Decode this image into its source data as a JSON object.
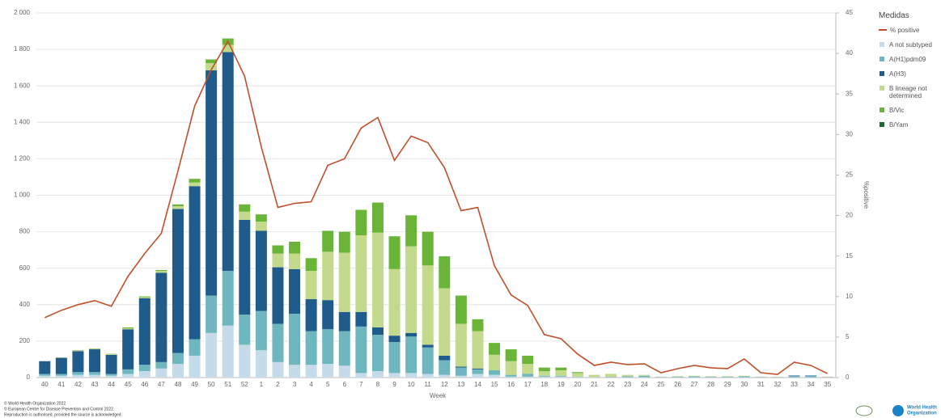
{
  "chart_data": {
    "type": "bar",
    "stacked": true,
    "x_label": "Week",
    "y2_label": "%positive",
    "legend_title": "Medidas",
    "legend_position": "right",
    "grid": true,
    "categories": [
      "40",
      "41",
      "42",
      "43",
      "44",
      "45",
      "46",
      "47",
      "48",
      "49",
      "50",
      "51",
      "52",
      "1",
      "2",
      "3",
      "4",
      "5",
      "6",
      "7",
      "8",
      "9",
      "10",
      "11",
      "12",
      "13",
      "14",
      "15",
      "16",
      "17",
      "18",
      "19",
      "20",
      "21",
      "22",
      "23",
      "24",
      "25",
      "26",
      "27",
      "28",
      "29",
      "30",
      "31",
      "32",
      "33",
      "34",
      "35"
    ],
    "series": [
      {
        "name": "% positive",
        "color": "#c0502c",
        "axis": "y2",
        "values": [
          7.4,
          8.3,
          9.0,
          9.5,
          8.8,
          12.5,
          15.3,
          17.8,
          25.5,
          33.5,
          38,
          41.5,
          37.2,
          28.5,
          21,
          21.5,
          21.7,
          26.2,
          27,
          30.8,
          32.1,
          26.8,
          29.8,
          29.0,
          25.9,
          20.6,
          21,
          13.8,
          10.2,
          8.9,
          5.3,
          4.8,
          2.9,
          1.5,
          1.9,
          1.6,
          1.7,
          0.6,
          1.1,
          1.5,
          1.2,
          1.1,
          2.3,
          0.6,
          0.4,
          1.9,
          1.5,
          0.5
        ]
      },
      {
        "name": "A not subtyped",
        "color": "#c5dbe9",
        "values": [
          10,
          10,
          15,
          15,
          10,
          20,
          35,
          50,
          75,
          120,
          245,
          285,
          180,
          150,
          85,
          70,
          70,
          75,
          65,
          25,
          35,
          25,
          25,
          20,
          15,
          10,
          20,
          15,
          5,
          5,
          5,
          5,
          3,
          2,
          2,
          2,
          2,
          1,
          2,
          2,
          2,
          2,
          2,
          1,
          1,
          2,
          2,
          1
        ]
      },
      {
        "name": "A(H1)pdm09",
        "color": "#6fb7bf",
        "values": [
          10,
          10,
          15,
          15,
          10,
          25,
          35,
          35,
          60,
          90,
          205,
          300,
          165,
          215,
          210,
          280,
          185,
          190,
          190,
          255,
          200,
          170,
          200,
          145,
          80,
          45,
          25,
          25,
          10,
          15,
          5,
          5,
          2,
          1,
          2,
          5,
          8,
          2,
          3,
          5,
          3,
          3,
          5,
          2,
          1,
          8,
          8,
          2
        ]
      },
      {
        "name": "A(H3)",
        "color": "#1f5b8b",
        "values": [
          70,
          88,
          115,
          125,
          105,
          220,
          365,
          490,
          790,
          840,
          1235,
          1200,
          520,
          440,
          310,
          245,
          175,
          160,
          105,
          80,
          40,
          35,
          20,
          15,
          25,
          5,
          5,
          0,
          0,
          0,
          0,
          0,
          0,
          0,
          0,
          0,
          0,
          0,
          0,
          0,
          0,
          0,
          0,
          0,
          0,
          2,
          2,
          0
        ]
      },
      {
        "name": "B lineage not determined",
        "color": "#c3da8d",
        "values": [
          0,
          0,
          3,
          3,
          3,
          5,
          5,
          10,
          15,
          20,
          40,
          40,
          45,
          50,
          75,
          85,
          155,
          265,
          325,
          420,
          520,
          365,
          475,
          435,
          370,
          235,
          205,
          85,
          75,
          55,
          25,
          30,
          20,
          12,
          15,
          8,
          5,
          2,
          3,
          3,
          3,
          3,
          3,
          2,
          2,
          0,
          0,
          2
        ]
      },
      {
        "name": "B/Vic",
        "color": "#6ab537",
        "values": [
          0,
          2,
          2,
          2,
          2,
          5,
          5,
          5,
          10,
          20,
          20,
          35,
          40,
          40,
          45,
          65,
          70,
          115,
          115,
          140,
          165,
          180,
          170,
          185,
          175,
          155,
          65,
          65,
          65,
          45,
          20,
          15,
          5,
          0,
          1,
          0,
          0,
          0,
          0,
          0,
          0,
          0,
          0,
          0,
          0,
          0,
          0,
          0
        ]
      },
      {
        "name": "B/Yam",
        "color": "#1a6b2f",
        "values": [
          0,
          0,
          0,
          0,
          0,
          0,
          0,
          0,
          0,
          0,
          0,
          0,
          0,
          0,
          0,
          0,
          0,
          0,
          0,
          0,
          0,
          0,
          0,
          0,
          0,
          0,
          0,
          0,
          0,
          0,
          0,
          0,
          0,
          0,
          0,
          0,
          0,
          0,
          0,
          0,
          0,
          0,
          0,
          0,
          0,
          0,
          0,
          0
        ]
      }
    ],
    "ylim": [
      0,
      2000
    ],
    "yticks": [
      0,
      200,
      400,
      600,
      800,
      {
        "value": 1000,
        "label": "1 000"
      },
      {
        "value": 1200,
        "label": "1 200"
      },
      {
        "value": 1400,
        "label": "1 400"
      },
      {
        "value": 1600,
        "label": "1 600"
      },
      {
        "value": 1800,
        "label": "1 800"
      },
      {
        "value": 2000,
        "label": "2 000"
      }
    ],
    "y2lim": [
      0,
      45
    ],
    "y2ticks": [
      0,
      5,
      10,
      15,
      20,
      25,
      30,
      35,
      40,
      45
    ]
  },
  "footer": [
    "© World Health Organization 2022.",
    "© European Centre for Disease Prevention and Control 2022.",
    "Reproduction is authorised, provided the source is acknowledged."
  ],
  "logo": [
    "World Health",
    "Organization"
  ]
}
